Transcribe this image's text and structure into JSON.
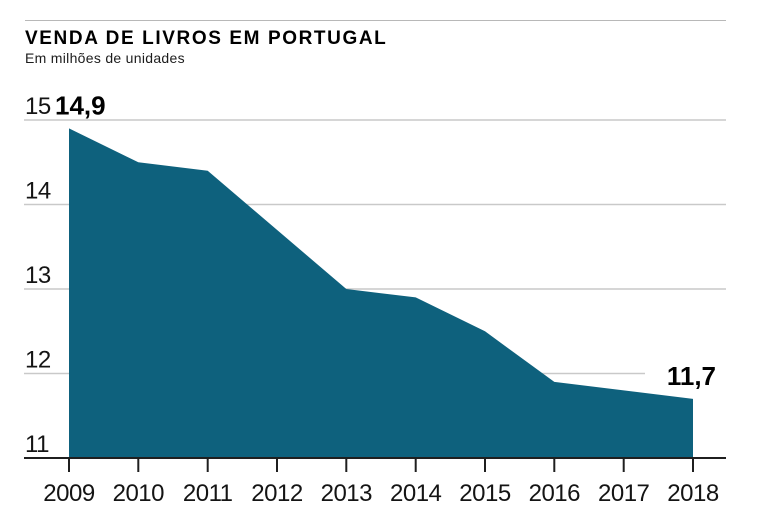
{
  "header": {
    "title": "VENDA DE LIVROS EM PORTUGAL",
    "subtitle": "Em milhões de unidades"
  },
  "chart_data": {
    "type": "area",
    "title": "VENDA DE LIVROS EM PORTUGAL",
    "subtitle": "Em milhões de unidades",
    "x": [
      2009,
      2010,
      2011,
      2012,
      2013,
      2014,
      2015,
      2016,
      2017,
      2018
    ],
    "values": [
      14.9,
      14.5,
      14.4,
      13.7,
      13.0,
      12.9,
      12.5,
      11.9,
      11.8,
      11.7
    ],
    "xlabel": "",
    "ylabel": "Em milhões de unidades",
    "ylim": [
      11,
      15
    ],
    "yticks": [
      11,
      12,
      13,
      14,
      15
    ],
    "grid": true,
    "legend_position": "none",
    "annotations": [
      {
        "x": 2009,
        "label": "14,9"
      },
      {
        "x": 2018,
        "label": "11,7"
      }
    ],
    "colors": {
      "area": "#0e617d",
      "gridline": "#c9c9c9",
      "axis": "#1f1f1f",
      "label": "#141414",
      "annotation": "#000000"
    }
  }
}
